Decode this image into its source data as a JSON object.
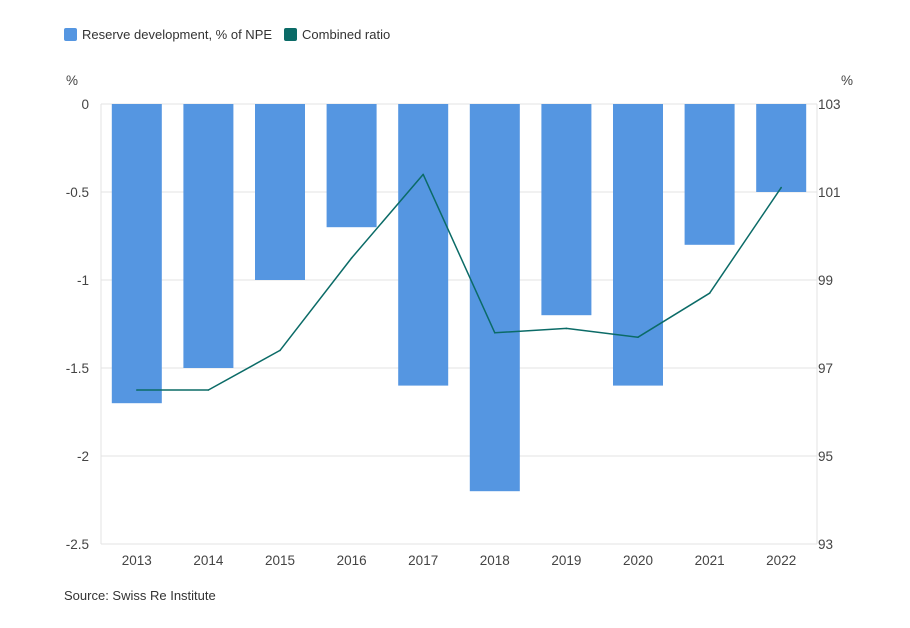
{
  "legend": {
    "bar_label": "Reserve development, % of NPE",
    "line_label": "Combined ratio"
  },
  "axes": {
    "left_unit": "%",
    "right_unit": "%"
  },
  "source": "Source: Swiss Re Institute",
  "colors": {
    "bar": "#5596e1",
    "line": "#0b6b67",
    "grid": "#e3e3e3"
  },
  "chart_data": {
    "type": "bar",
    "categories": [
      "2013",
      "2014",
      "2015",
      "2016",
      "2017",
      "2018",
      "2019",
      "2020",
      "2021",
      "2022"
    ],
    "series": [
      {
        "name": "Reserve development, % of NPE",
        "type": "bar",
        "axis": "left",
        "values": [
          -1.7,
          -1.5,
          -1.0,
          -0.7,
          -1.6,
          -2.2,
          -1.2,
          -1.6,
          -0.8,
          -0.5
        ]
      },
      {
        "name": "Combined ratio",
        "type": "line",
        "axis": "right",
        "values": [
          96.5,
          96.5,
          97.4,
          99.5,
          101.4,
          97.8,
          97.9,
          97.7,
          98.7,
          101.1
        ]
      }
    ],
    "left_axis": {
      "ylim": [
        -2.5,
        0
      ],
      "ticks": [
        "0",
        "-0.5",
        "-1",
        "-1.5",
        "-2",
        "-2.5"
      ],
      "tick_values": [
        0,
        -0.5,
        -1,
        -1.5,
        -2,
        -2.5
      ]
    },
    "right_axis": {
      "ylim": [
        93,
        103
      ],
      "ticks": [
        "103",
        "101",
        "99",
        "97",
        "95",
        "93"
      ],
      "tick_values": [
        103,
        101,
        99,
        97,
        95,
        93
      ]
    },
    "grid": true,
    "legend_position": "top-left"
  }
}
